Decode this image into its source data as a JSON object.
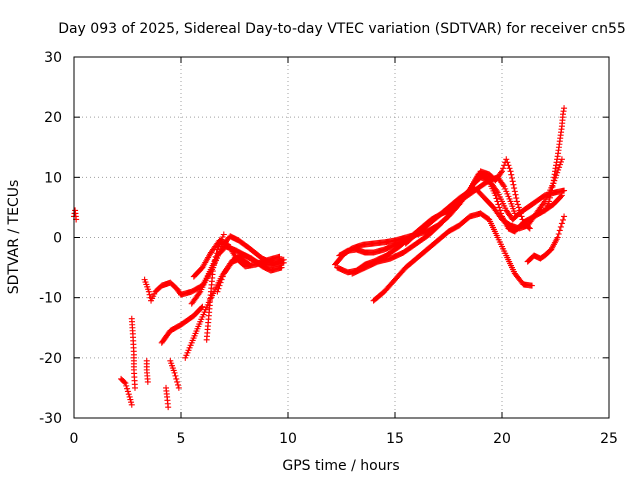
{
  "chart_data": {
    "type": "scatter",
    "title": "Day 093 of 2025, Sidereal Day-to-day VTEC variation (SDTVAR) for receiver cn55",
    "xlabel": "GPS time / hours",
    "ylabel": "SDTVAR / TECUs",
    "xlim": [
      0,
      25
    ],
    "ylim": [
      -30,
      30
    ],
    "xticks": [
      0,
      5,
      10,
      15,
      20,
      25
    ],
    "yticks": [
      -30,
      -20,
      -10,
      0,
      10,
      20,
      30
    ],
    "grid": true,
    "marker": "+",
    "colors": {
      "series": "#ff0000",
      "grid": "#a0a0a0",
      "axis": "#000000"
    },
    "tracks": [
      {
        "name": "t1",
        "points": [
          [
            0.0,
            3.5
          ],
          [
            0.05,
            4.5
          ],
          [
            0.1,
            3.0
          ]
        ]
      },
      {
        "name": "t2",
        "points": [
          [
            2.2,
            -23.5
          ],
          [
            2.4,
            -24.2
          ],
          [
            2.6,
            -26.5
          ],
          [
            2.7,
            -27.8
          ]
        ]
      },
      {
        "name": "t3",
        "points": [
          [
            2.7,
            -13.5
          ],
          [
            2.75,
            -16
          ],
          [
            2.8,
            -19.5
          ],
          [
            2.8,
            -22
          ],
          [
            2.85,
            -25
          ]
        ]
      },
      {
        "name": "t4",
        "points": [
          [
            3.3,
            -7
          ],
          [
            3.5,
            -9
          ],
          [
            3.6,
            -10.5
          ],
          [
            3.8,
            -9
          ],
          [
            4.1,
            -8
          ],
          [
            4.5,
            -7.5
          ],
          [
            4.8,
            -8.5
          ],
          [
            5.0,
            -9.5
          ]
        ]
      },
      {
        "name": "t5",
        "points": [
          [
            3.4,
            -20.5
          ],
          [
            3.4,
            -22
          ],
          [
            3.45,
            -24
          ]
        ]
      },
      {
        "name": "t6",
        "points": [
          [
            4.1,
            -17.5
          ],
          [
            4.3,
            -16.5
          ],
          [
            4.5,
            -15.5
          ],
          [
            5.0,
            -14.5
          ],
          [
            5.6,
            -13
          ],
          [
            6.0,
            -11.5
          ]
        ]
      },
      {
        "name": "t7",
        "points": [
          [
            4.3,
            -25
          ],
          [
            4.35,
            -26.5
          ],
          [
            4.4,
            -28.2
          ]
        ]
      },
      {
        "name": "t8",
        "points": [
          [
            4.5,
            -20.5
          ],
          [
            4.7,
            -22.5
          ],
          [
            4.9,
            -25
          ]
        ]
      },
      {
        "name": "t9",
        "points": [
          [
            5.2,
            -20
          ],
          [
            5.5,
            -17.5
          ],
          [
            5.9,
            -14
          ],
          [
            6.4,
            -10
          ],
          [
            6.9,
            -6.5
          ],
          [
            7.4,
            -3.8
          ],
          [
            7.9,
            -2.8
          ],
          [
            8.3,
            -3.5
          ],
          [
            8.8,
            -4.8
          ],
          [
            9.2,
            -5.5
          ],
          [
            9.7,
            -5.0
          ]
        ]
      },
      {
        "name": "t10",
        "points": [
          [
            5.0,
            -9.5
          ],
          [
            5.5,
            -9
          ],
          [
            6.0,
            -8
          ],
          [
            6.5,
            -5
          ],
          [
            6.9,
            -1.5
          ],
          [
            7.3,
            0.2
          ],
          [
            7.7,
            -0.5
          ],
          [
            8.2,
            -1.8
          ],
          [
            8.8,
            -3.5
          ],
          [
            9.3,
            -4.3
          ],
          [
            9.8,
            -3.7
          ]
        ]
      },
      {
        "name": "t11",
        "points": [
          [
            5.6,
            -6.5
          ],
          [
            6.0,
            -5
          ],
          [
            6.4,
            -2.5
          ],
          [
            6.8,
            -0.5
          ],
          [
            7.2,
            -1.2
          ],
          [
            7.6,
            -3.5
          ],
          [
            8.0,
            -4.8
          ],
          [
            8.5,
            -4.5
          ],
          [
            9.0,
            -3.8
          ],
          [
            9.6,
            -3.2
          ]
        ]
      },
      {
        "name": "t12",
        "points": [
          [
            5.5,
            -11
          ],
          [
            5.9,
            -9
          ],
          [
            6.3,
            -6
          ],
          [
            6.7,
            -3
          ],
          [
            7.1,
            -1.5
          ],
          [
            7.6,
            -2.2
          ],
          [
            8.1,
            -3.2
          ],
          [
            8.6,
            -4.2
          ],
          [
            9.2,
            -4.6
          ],
          [
            9.8,
            -4.2
          ]
        ]
      },
      {
        "name": "t13",
        "points": [
          [
            6.2,
            -17
          ],
          [
            6.3,
            -13
          ],
          [
            6.4,
            -9
          ],
          [
            6.5,
            -5
          ],
          [
            6.7,
            -2
          ],
          [
            7.0,
            0.5
          ]
        ]
      },
      {
        "name": "t14",
        "points": [
          [
            6.7,
            -9
          ],
          [
            7.0,
            -6
          ],
          [
            7.4,
            -4
          ],
          [
            7.8,
            -3.5
          ],
          [
            8.2,
            -4.5
          ]
        ]
      },
      {
        "name": "t15",
        "points": [
          [
            12.2,
            -4.5
          ],
          [
            12.6,
            -2.8
          ],
          [
            13.0,
            -1.8
          ],
          [
            13.5,
            -1.2
          ],
          [
            14.0,
            -1.0
          ],
          [
            14.5,
            -0.8
          ],
          [
            15.0,
            -0.5
          ],
          [
            15.5,
            0.0
          ],
          [
            16.0,
            0.5
          ],
          [
            16.5,
            1.0
          ],
          [
            17.0,
            2.0
          ],
          [
            17.5,
            3.5
          ],
          [
            18.0,
            5.5
          ],
          [
            18.5,
            8.0
          ],
          [
            18.9,
            10.5
          ],
          [
            19.3,
            10.0
          ],
          [
            19.7,
            7.0
          ],
          [
            20.0,
            3.5
          ],
          [
            20.3,
            1.5
          ],
          [
            20.6,
            1.0
          ],
          [
            21.0,
            2.5
          ],
          [
            21.5,
            3.5
          ],
          [
            22.0,
            4.5
          ],
          [
            22.4,
            5.5
          ],
          [
            22.8,
            7.0
          ]
        ]
      },
      {
        "name": "t16",
        "points": [
          [
            12.3,
            -5.0
          ],
          [
            12.8,
            -5.8
          ],
          [
            13.2,
            -5.5
          ],
          [
            13.6,
            -4.5
          ],
          [
            14.0,
            -4.0
          ],
          [
            14.6,
            -3.0
          ],
          [
            15.2,
            -1.5
          ],
          [
            15.7,
            0.0
          ],
          [
            16.2,
            1.5
          ],
          [
            16.7,
            3.0
          ],
          [
            17.2,
            4.0
          ],
          [
            17.8,
            5.0
          ],
          [
            18.3,
            7.0
          ],
          [
            18.7,
            9.0
          ],
          [
            19.0,
            10.0
          ],
          [
            19.4,
            9.5
          ],
          [
            19.8,
            7.5
          ],
          [
            20.2,
            4.5
          ],
          [
            20.5,
            3.0
          ],
          [
            20.8,
            4.0
          ],
          [
            21.2,
            5.0
          ],
          [
            21.6,
            6.0
          ],
          [
            22.0,
            7.0
          ],
          [
            22.5,
            7.5
          ],
          [
            22.9,
            7.8
          ]
        ]
      },
      {
        "name": "t17",
        "points": [
          [
            12.4,
            -3.0
          ],
          [
            12.8,
            -2.2
          ],
          [
            13.2,
            -2.0
          ],
          [
            13.6,
            -2.5
          ],
          [
            14.0,
            -2.5
          ],
          [
            14.5,
            -2.0
          ],
          [
            15.0,
            -1.2
          ],
          [
            15.5,
            -0.5
          ],
          [
            16.0,
            0.5
          ],
          [
            16.5,
            2.0
          ],
          [
            17.0,
            3.5
          ],
          [
            17.5,
            5.0
          ],
          [
            18.0,
            6.5
          ],
          [
            18.4,
            7.5
          ],
          [
            18.8,
            8.0
          ],
          [
            19.2,
            6.5
          ],
          [
            19.6,
            5.0
          ],
          [
            20.0,
            3.0
          ],
          [
            20.4,
            2.0
          ],
          [
            20.8,
            1.5
          ],
          [
            21.2,
            2.0
          ],
          [
            21.6,
            4.0
          ],
          [
            22.0,
            6.0
          ],
          [
            22.4,
            9.0
          ],
          [
            22.8,
            13.0
          ]
        ]
      },
      {
        "name": "t18",
        "points": [
          [
            14.0,
            -10.5
          ],
          [
            14.5,
            -9.0
          ],
          [
            15.0,
            -7.0
          ],
          [
            15.5,
            -5.0
          ],
          [
            16.0,
            -3.5
          ],
          [
            16.5,
            -2.0
          ],
          [
            17.0,
            -0.5
          ],
          [
            17.5,
            1.0
          ],
          [
            18.0,
            2.0
          ],
          [
            18.5,
            3.5
          ],
          [
            19.0,
            4.0
          ],
          [
            19.4,
            3.0
          ],
          [
            19.8,
            0.0
          ],
          [
            20.2,
            -3.0
          ],
          [
            20.6,
            -6.0
          ],
          [
            21.0,
            -7.8
          ],
          [
            21.4,
            -8.0
          ]
        ]
      },
      {
        "name": "t19",
        "points": [
          [
            13.0,
            -6.0
          ],
          [
            13.6,
            -5.0
          ],
          [
            14.2,
            -4.0
          ],
          [
            14.8,
            -3.5
          ],
          [
            15.4,
            -2.5
          ],
          [
            16.0,
            -1.0
          ],
          [
            16.6,
            0.5
          ],
          [
            17.2,
            2.5
          ],
          [
            17.7,
            4.5
          ],
          [
            18.2,
            6.5
          ],
          [
            18.6,
            8.5
          ],
          [
            19.0,
            11.0
          ],
          [
            19.4,
            10.5
          ],
          [
            19.7,
            9.5
          ],
          [
            20.0,
            11.0
          ],
          [
            20.2,
            13.0
          ],
          [
            20.4,
            11.0
          ],
          [
            20.7,
            6.0
          ],
          [
            21.0,
            2.5
          ],
          [
            21.3,
            1.5
          ]
        ]
      },
      {
        "name": "t20",
        "points": [
          [
            15.5,
            -1.0
          ],
          [
            15.8,
            0.0
          ],
          [
            16.2,
            1.2
          ],
          [
            16.6,
            2.5
          ],
          [
            17.0,
            3.5
          ],
          [
            17.4,
            4.5
          ],
          [
            17.8,
            5.5
          ],
          [
            18.2,
            6.5
          ],
          [
            18.6,
            7.5
          ],
          [
            19.0,
            8.5
          ],
          [
            19.4,
            9.5
          ],
          [
            19.8,
            10.0
          ],
          [
            20.1,
            8.5
          ],
          [
            20.4,
            6.0
          ],
          [
            20.6,
            4.0
          ]
        ]
      },
      {
        "name": "t21",
        "points": [
          [
            21.2,
            -4.0
          ],
          [
            21.5,
            -3.0
          ],
          [
            21.8,
            -3.5
          ],
          [
            22.0,
            -3.0
          ],
          [
            22.3,
            -2.0
          ],
          [
            22.6,
            0.0
          ],
          [
            22.9,
            3.5
          ]
        ]
      },
      {
        "name": "t22",
        "points": [
          [
            22.0,
            4.5
          ],
          [
            22.2,
            6.0
          ],
          [
            22.4,
            9.0
          ],
          [
            22.5,
            11.5
          ],
          [
            22.6,
            13.5
          ],
          [
            22.7,
            16.0
          ],
          [
            22.8,
            18.5
          ],
          [
            22.85,
            20.5
          ],
          [
            22.9,
            21.5
          ]
        ]
      }
    ]
  }
}
